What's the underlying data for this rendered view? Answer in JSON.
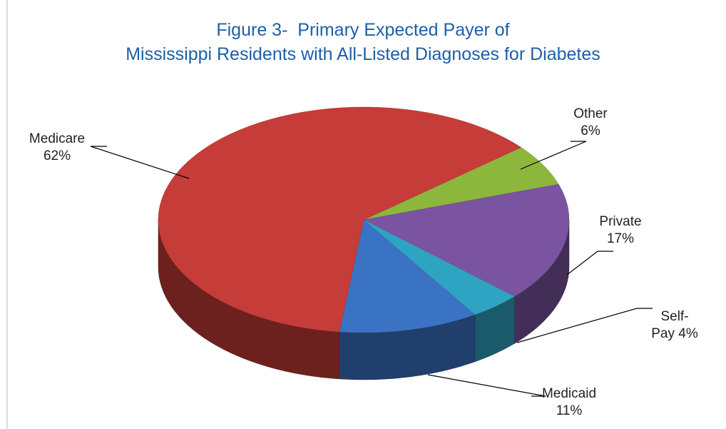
{
  "chart_data": {
    "type": "pie3d",
    "title": "Figure 3-  Primary Expected Payer of",
    "subtitle": "Mississippi Residents with All-Listed Diagnoses for Diabetes",
    "categories": [
      "Other",
      "Private",
      "Self-Pay",
      "Medicaid",
      "Medicare"
    ],
    "values": [
      6,
      17,
      4,
      11,
      62
    ],
    "value_labels": [
      "6%",
      "17%",
      "4%",
      "11%",
      "62%"
    ],
    "colors": [
      "#8db63c",
      "#7a54a0",
      "#2fa3c2",
      "#3b73c4",
      "#c63c39"
    ]
  }
}
